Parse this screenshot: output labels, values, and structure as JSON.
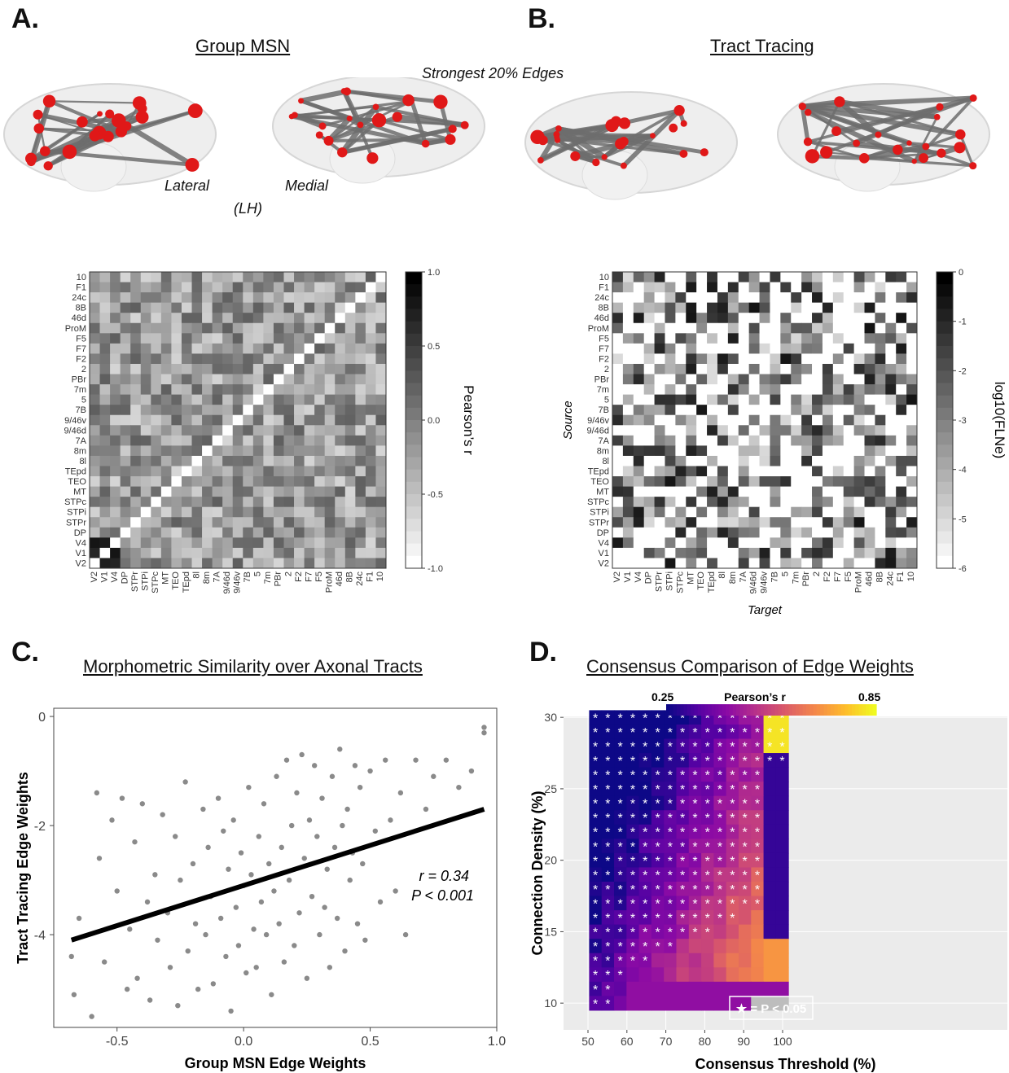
{
  "panels": {
    "a": {
      "letter": "A.",
      "title": "Group MSN",
      "view_lateral": "Lateral",
      "view_medial": "Medial",
      "hemisphere": "(LH)"
    },
    "b": {
      "letter": "B.",
      "title": "Tract Tracing"
    },
    "c": {
      "letter": "C.",
      "title": "Morphometric Similarity over Axonal Tracts"
    },
    "d": {
      "letter": "D.",
      "title": "Consensus Comparison of Edge Weights"
    }
  },
  "edges_caption": "Strongest 20% Edges",
  "regions_rows_top_to_bottom": [
    "10",
    "F1",
    "24c",
    "8B",
    "46d",
    "ProM",
    "F5",
    "F7",
    "F2",
    "2",
    "PBr",
    "7m",
    "5",
    "7B",
    "9/46v",
    "9/46d",
    "7A",
    "8m",
    "8l",
    "TEpd",
    "TEO",
    "MT",
    "STPc",
    "STPi",
    "STPr",
    "DP",
    "V4",
    "V1",
    "V2"
  ],
  "regions_cols_left_to_right": [
    "V2",
    "V1",
    "V4",
    "DP",
    "STPr",
    "STPi",
    "STPc",
    "MT",
    "TEO",
    "TEpd",
    "8l",
    "8m",
    "7A",
    "9/46d",
    "9/46v",
    "7B",
    "5",
    "7m",
    "PBr",
    "2",
    "F2",
    "F7",
    "F5",
    "ProM",
    "46d",
    "8B",
    "24c",
    "F1",
    "10"
  ],
  "heatmap_a": {
    "colorbar_ticks": [
      "1.0",
      "0.5",
      "0.0",
      "-0.5",
      "-1.0"
    ],
    "colorbar_label": "Pearson’s r"
  },
  "heatmap_b": {
    "colorbar_ticks": [
      "0",
      "-1",
      "-2",
      "-3",
      "-4",
      "-5",
      "-6"
    ],
    "colorbar_label": "log10(FLNe)",
    "ylabel": "Source",
    "xlabel": "Target"
  },
  "chart_data": [
    {
      "type": "scatter",
      "title": "Morphometric Similarity over Axonal Tracts",
      "xlabel": "Group MSN Edge Weights",
      "ylabel": "Tract Tracing Edge Weights",
      "xlim": [
        -0.75,
        1.0
      ],
      "ylim": [
        -5.7,
        0.15
      ],
      "xticks": [
        "-0.5",
        "0.0",
        "0.5",
        "1.0"
      ],
      "yticks": [
        "0",
        "-2",
        "-4"
      ],
      "fit_line": {
        "x": [
          -0.68,
          0.95
        ],
        "y": [
          -4.1,
          -1.7
        ]
      },
      "annotation_r": "r = 0.34",
      "annotation_p": "P < 0.001",
      "points": [
        [
          -0.68,
          -4.4
        ],
        [
          -0.67,
          -5.1
        ],
        [
          -0.65,
          -3.7
        ],
        [
          -0.6,
          -5.5
        ],
        [
          -0.58,
          -1.4
        ],
        [
          -0.57,
          -2.6
        ],
        [
          -0.55,
          -4.5
        ],
        [
          -0.52,
          -1.9
        ],
        [
          -0.5,
          -3.2
        ],
        [
          -0.48,
          -1.5
        ],
        [
          -0.46,
          -5.0
        ],
        [
          -0.45,
          -3.9
        ],
        [
          -0.43,
          -2.3
        ],
        [
          -0.42,
          -4.8
        ],
        [
          -0.4,
          -1.6
        ],
        [
          -0.38,
          -3.4
        ],
        [
          -0.37,
          -5.2
        ],
        [
          -0.35,
          -2.9
        ],
        [
          -0.34,
          -4.1
        ],
        [
          -0.32,
          -1.8
        ],
        [
          -0.3,
          -3.6
        ],
        [
          -0.29,
          -4.6
        ],
        [
          -0.27,
          -2.2
        ],
        [
          -0.26,
          -5.3
        ],
        [
          -0.25,
          -3.0
        ],
        [
          -0.23,
          -1.2
        ],
        [
          -0.22,
          -4.3
        ],
        [
          -0.2,
          -2.7
        ],
        [
          -0.19,
          -3.8
        ],
        [
          -0.18,
          -5.0
        ],
        [
          -0.16,
          -1.7
        ],
        [
          -0.15,
          -4.0
        ],
        [
          -0.14,
          -2.4
        ],
        [
          -0.13,
          -3.3
        ],
        [
          -0.12,
          -4.9
        ],
        [
          -0.1,
          -1.5
        ],
        [
          -0.09,
          -3.7
        ],
        [
          -0.08,
          -2.1
        ],
        [
          -0.07,
          -4.4
        ],
        [
          -0.06,
          -2.8
        ],
        [
          -0.05,
          -5.4
        ],
        [
          -0.04,
          -1.9
        ],
        [
          -0.03,
          -3.5
        ],
        [
          -0.02,
          -4.2
        ],
        [
          -0.01,
          -2.5
        ],
        [
          0.0,
          -3.1
        ],
        [
          0.01,
          -4.7
        ],
        [
          0.02,
          -1.3
        ],
        [
          0.03,
          -2.9
        ],
        [
          0.04,
          -3.9
        ],
        [
          0.05,
          -4.6
        ],
        [
          0.06,
          -2.2
        ],
        [
          0.07,
          -3.4
        ],
        [
          0.08,
          -1.6
        ],
        [
          0.09,
          -4.0
        ],
        [
          0.1,
          -2.7
        ],
        [
          0.11,
          -5.1
        ],
        [
          0.12,
          -3.2
        ],
        [
          0.13,
          -1.1
        ],
        [
          0.14,
          -3.8
        ],
        [
          0.15,
          -2.4
        ],
        [
          0.16,
          -4.5
        ],
        [
          0.17,
          -0.8
        ],
        [
          0.18,
          -3.0
        ],
        [
          0.19,
          -2.0
        ],
        [
          0.2,
          -4.2
        ],
        [
          0.21,
          -1.4
        ],
        [
          0.22,
          -3.6
        ],
        [
          0.23,
          -0.7
        ],
        [
          0.24,
          -2.6
        ],
        [
          0.25,
          -4.8
        ],
        [
          0.26,
          -1.9
        ],
        [
          0.27,
          -3.3
        ],
        [
          0.28,
          -0.9
        ],
        [
          0.29,
          -2.2
        ],
        [
          0.3,
          -4.0
        ],
        [
          0.31,
          -1.5
        ],
        [
          0.32,
          -3.5
        ],
        [
          0.33,
          -2.8
        ],
        [
          0.34,
          -4.6
        ],
        [
          0.35,
          -1.1
        ],
        [
          0.36,
          -2.4
        ],
        [
          0.37,
          -3.7
        ],
        [
          0.38,
          -0.6
        ],
        [
          0.39,
          -2.0
        ],
        [
          0.4,
          -4.3
        ],
        [
          0.41,
          -1.7
        ],
        [
          0.42,
          -3.0
        ],
        [
          0.43,
          -2.5
        ],
        [
          0.44,
          -0.9
        ],
        [
          0.45,
          -3.8
        ],
        [
          0.46,
          -1.3
        ],
        [
          0.47,
          -2.7
        ],
        [
          0.48,
          -4.1
        ],
        [
          0.5,
          -1.0
        ],
        [
          0.52,
          -2.1
        ],
        [
          0.54,
          -3.4
        ],
        [
          0.56,
          -0.8
        ],
        [
          0.58,
          -1.9
        ],
        [
          0.6,
          -3.2
        ],
        [
          0.62,
          -1.4
        ],
        [
          0.64,
          -4.0
        ],
        [
          0.68,
          -0.8
        ],
        [
          0.72,
          -1.7
        ],
        [
          0.75,
          -1.1
        ],
        [
          0.8,
          -0.8
        ],
        [
          0.85,
          -1.3
        ],
        [
          0.9,
          -1.0
        ],
        [
          0.95,
          -0.2
        ],
        [
          0.95,
          -0.3
        ]
      ]
    },
    {
      "type": "heatmap",
      "title": "Consensus Comparison of Edge Weights",
      "xlabel": "Consensus Threshold (%)",
      "ylabel": "Connection Density (%)",
      "xticks": [
        "50",
        "60",
        "70",
        "80",
        "90",
        "100"
      ],
      "yticks": [
        "10",
        "15",
        "20",
        "25",
        "30"
      ],
      "colorbar_min_label": "0.25",
      "colorbar_label": "Pearson’s r",
      "colorbar_max_label": "0.85",
      "legend_text": "★ = P < 0.05",
      "grid": true
    }
  ]
}
